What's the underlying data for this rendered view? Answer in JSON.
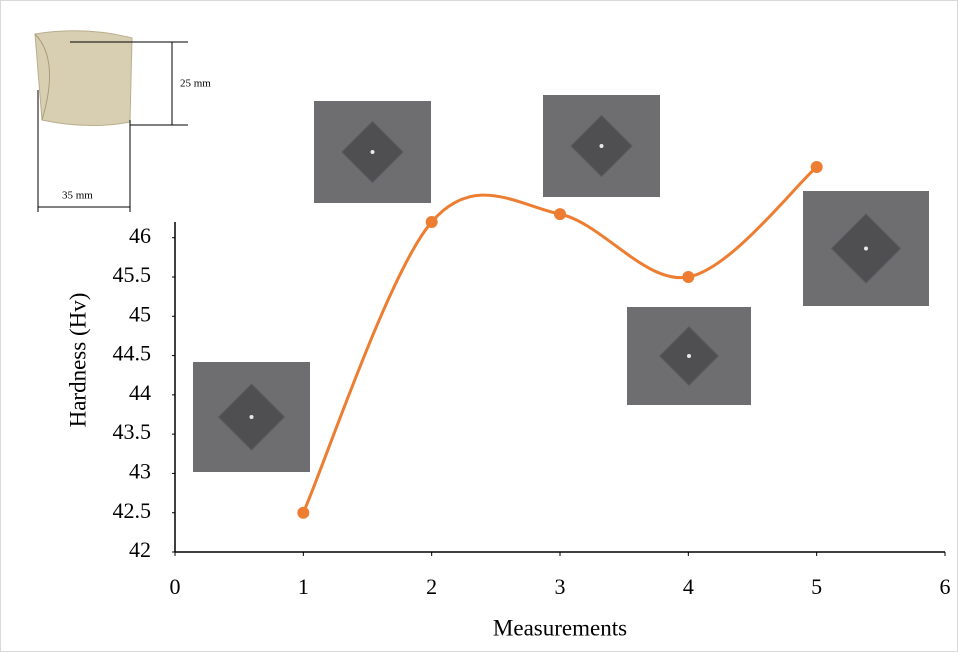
{
  "chart_data": {
    "type": "line",
    "smooth": true,
    "x": [
      1,
      2,
      3,
      4,
      5
    ],
    "values": [
      42.5,
      46.2,
      46.3,
      45.5,
      46.9
    ],
    "color": "#ed7d31",
    "xlim": [
      0,
      6
    ],
    "xticks": [
      0,
      1,
      2,
      3,
      4,
      5,
      6
    ],
    "ylim": [
      42,
      46.2
    ],
    "yticks": [
      42,
      42.5,
      43,
      43.5,
      44,
      44.5,
      45,
      45.5,
      46
    ],
    "xlabel": "Measurements",
    "ylabel": "Hardness (Hv)",
    "annotations": [
      "25 mm",
      "35 mm"
    ]
  }
}
